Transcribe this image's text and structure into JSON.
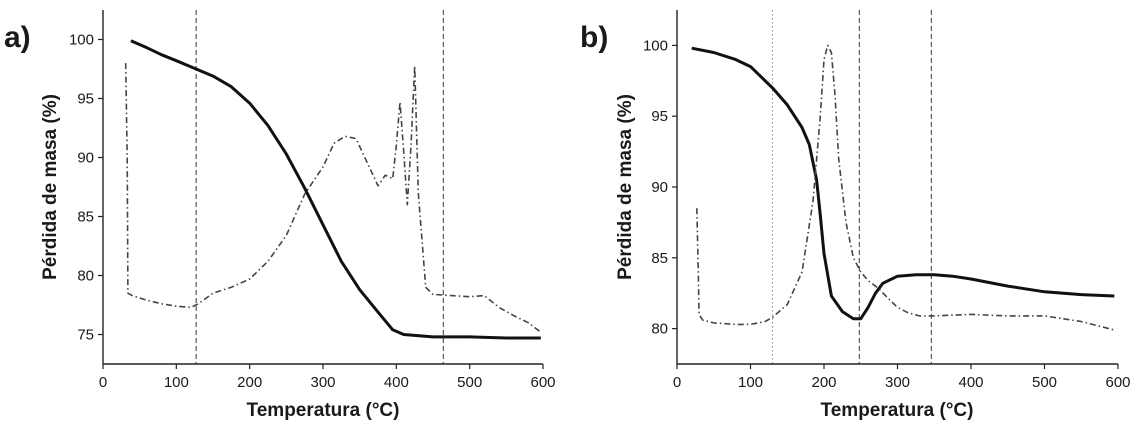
{
  "chart_data": [
    {
      "panel": "a)",
      "type": "line",
      "xlabel": "Temperatura (°C)",
      "ylabel": "Pérdida de masa (%)",
      "xlim": [
        0,
        600
      ],
      "ylim": [
        72.5,
        102.5
      ],
      "x_ticks": [
        "0",
        "100",
        "200",
        "300",
        "400",
        "500",
        "600"
      ],
      "y_ticks": [
        "75",
        "80",
        "85",
        "90",
        "95",
        "100"
      ],
      "x_tick_values": [
        0,
        100,
        200,
        300,
        400,
        500,
        600
      ],
      "y_tick_values": [
        75,
        80,
        85,
        90,
        95,
        100
      ],
      "vlines": [
        {
          "x": 127,
          "style": "dash"
        },
        {
          "x": 464,
          "style": "dash"
        }
      ],
      "series": [
        {
          "style": "solid",
          "x": [
            38,
            60,
            80,
            100,
            127,
            150,
            175,
            200,
            225,
            250,
            275,
            300,
            325,
            350,
            375,
            395,
            410,
            450,
            500,
            550,
            597
          ],
          "y": [
            99.9,
            99.3,
            98.7,
            98.2,
            97.5,
            96.9,
            96.0,
            94.6,
            92.7,
            90.3,
            87.4,
            84.3,
            81.2,
            78.8,
            76.9,
            75.4,
            75.0,
            74.8,
            74.8,
            74.7,
            74.7
          ]
        },
        {
          "style": "dashdot",
          "x": [
            31,
            33,
            34,
            40,
            60,
            80,
            100,
            120,
            130,
            150,
            175,
            200,
            225,
            250,
            275,
            300,
            315,
            330,
            345,
            360,
            375,
            385,
            395,
            400,
            405,
            410,
            415,
            420,
            425,
            430,
            440,
            450,
            475,
            500,
            520,
            540,
            560,
            580,
            597
          ],
          "y": [
            98.0,
            90.0,
            78.5,
            78.3,
            77.9,
            77.6,
            77.4,
            77.3,
            77.6,
            78.5,
            79.0,
            79.7,
            81.2,
            83.4,
            86.9,
            89.2,
            91.2,
            91.8,
            91.6,
            89.6,
            87.6,
            88.5,
            88.2,
            91.0,
            94.7,
            90.5,
            86.0,
            91.0,
            97.8,
            87.0,
            79.0,
            78.4,
            78.3,
            78.2,
            78.3,
            77.3,
            76.6,
            76.0,
            75.2
          ]
        }
      ]
    },
    {
      "panel": "b)",
      "type": "line",
      "xlabel": "Temperatura (°C)",
      "ylabel": "Pérdida de masa (%)",
      "xlim": [
        0,
        600
      ],
      "ylim": [
        77.5,
        102.5
      ],
      "x_ticks": [
        "0",
        "100",
        "200",
        "300",
        "400",
        "500",
        "600"
      ],
      "y_ticks": [
        "80",
        "85",
        "90",
        "95",
        "100"
      ],
      "x_tick_values": [
        0,
        100,
        200,
        300,
        400,
        500,
        600
      ],
      "y_tick_values": [
        80,
        85,
        90,
        95,
        100
      ],
      "vlines": [
        {
          "x": 130,
          "style": "dot"
        },
        {
          "x": 248,
          "style": "dash"
        },
        {
          "x": 346,
          "style": "dash"
        }
      ],
      "series": [
        {
          "style": "solid",
          "x": [
            20,
            50,
            80,
            100,
            130,
            150,
            170,
            180,
            190,
            195,
            200,
            210,
            225,
            240,
            250,
            260,
            270,
            280,
            300,
            325,
            350,
            375,
            400,
            450,
            500,
            550,
            595
          ],
          "y": [
            99.8,
            99.5,
            99.0,
            98.5,
            97.0,
            95.8,
            94.2,
            93.0,
            90.5,
            88.0,
            85.3,
            82.3,
            81.2,
            80.7,
            80.7,
            81.5,
            82.5,
            83.2,
            83.7,
            83.8,
            83.8,
            83.7,
            83.5,
            83.0,
            82.6,
            82.4,
            82.3
          ]
        },
        {
          "style": "dashdot",
          "x": [
            27,
            29,
            30,
            35,
            50,
            80,
            100,
            120,
            130,
            150,
            170,
            185,
            195,
            200,
            205,
            210,
            215,
            220,
            230,
            240,
            250,
            260,
            275,
            290,
            300,
            315,
            330,
            350,
            400,
            450,
            500,
            550,
            595
          ],
          "y": [
            88.5,
            84.0,
            81.0,
            80.6,
            80.4,
            80.3,
            80.3,
            80.5,
            80.8,
            81.7,
            84.0,
            89.0,
            95.0,
            99.0,
            100.0,
            99.5,
            96.5,
            92.0,
            87.5,
            85.0,
            84.0,
            83.4,
            82.8,
            82.0,
            81.5,
            81.1,
            80.9,
            80.9,
            81.0,
            80.9,
            80.9,
            80.5,
            79.9
          ]
        }
      ]
    }
  ]
}
